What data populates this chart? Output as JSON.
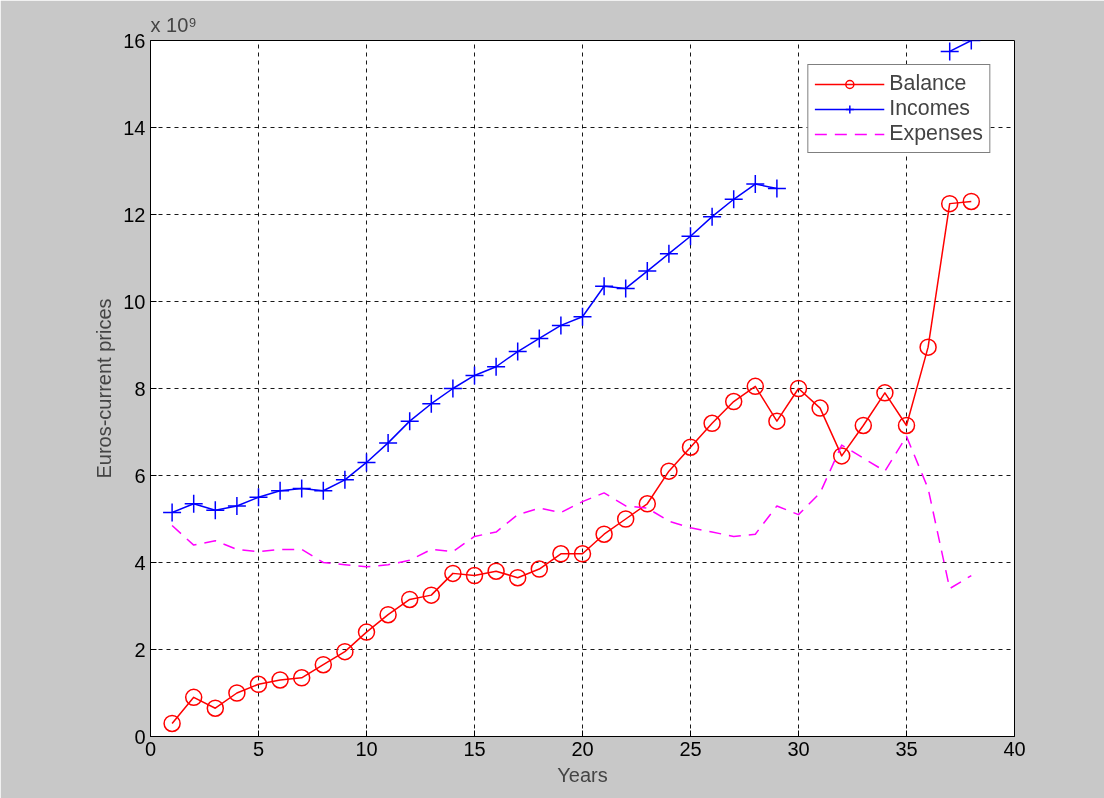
{
  "chart_data": {
    "type": "line",
    "xlabel": "Years",
    "ylabel": "Euros-current prices",
    "annotations": [
      "x 10⁹"
    ],
    "x": [
      1,
      2,
      3,
      4,
      5,
      6,
      7,
      8,
      9,
      10,
      11,
      12,
      13,
      14,
      15,
      16,
      17,
      18,
      19,
      20,
      21,
      22,
      23,
      24,
      25,
      26,
      27,
      28,
      29,
      30,
      31,
      32,
      33,
      34,
      35,
      36,
      37,
      38
    ],
    "series": [
      {
        "name": "Balance",
        "color": "#ff0000",
        "marker": "circle",
        "line_style": "solid",
        "values": [
          0.3,
          0.9,
          0.65,
          1.0,
          1.2,
          1.3,
          1.35,
          1.65,
          1.95,
          2.4,
          2.8,
          3.15,
          3.25,
          3.75,
          3.7,
          3.8,
          3.65,
          3.85,
          4.2,
          4.2,
          4.65,
          5.0,
          5.35,
          6.1,
          6.65,
          7.2,
          7.7,
          8.05,
          7.25,
          8.0,
          7.55,
          6.45,
          7.15,
          7.9,
          7.15,
          8.95,
          12.25,
          12.3
        ]
      },
      {
        "name": "Incomes",
        "color": "#0000ff",
        "marker": "cross",
        "line_style": "solid",
        "values": [
          5.15,
          5.35,
          5.2,
          5.3,
          5.5,
          5.65,
          5.7,
          5.65,
          5.9,
          6.3,
          6.75,
          7.25,
          7.65,
          8.0,
          8.3,
          8.5,
          8.85,
          9.15,
          9.45,
          9.65,
          10.35,
          10.3,
          10.7,
          11.1,
          11.5,
          11.95,
          12.35,
          12.7,
          12.6,
          null,
          null,
          null,
          null,
          null,
          null,
          null,
          15.75,
          16.0
        ]
      },
      {
        "name": "Expenses",
        "color": "#ff00ff",
        "marker": "none",
        "line_style": "dashed",
        "values": [
          4.85,
          4.4,
          4.5,
          4.3,
          4.25,
          4.3,
          4.3,
          4.0,
          3.95,
          3.9,
          3.95,
          4.05,
          4.3,
          4.25,
          4.6,
          4.7,
          5.1,
          5.25,
          5.15,
          5.4,
          5.6,
          5.3,
          5.25,
          4.95,
          4.8,
          4.7,
          4.6,
          4.65,
          5.3,
          5.1,
          5.6,
          6.7,
          6.4,
          6.1,
          6.9,
          5.7,
          3.4,
          3.7
        ]
      }
    ],
    "xlim": [
      0,
      40
    ],
    "xticks": [
      0,
      5,
      10,
      15,
      20,
      25,
      30,
      35,
      40
    ],
    "ylim": [
      0,
      16
    ],
    "yticks": [
      0,
      2,
      4,
      6,
      8,
      10,
      12,
      14,
      16
    ],
    "grid": true,
    "legend": "top right"
  }
}
